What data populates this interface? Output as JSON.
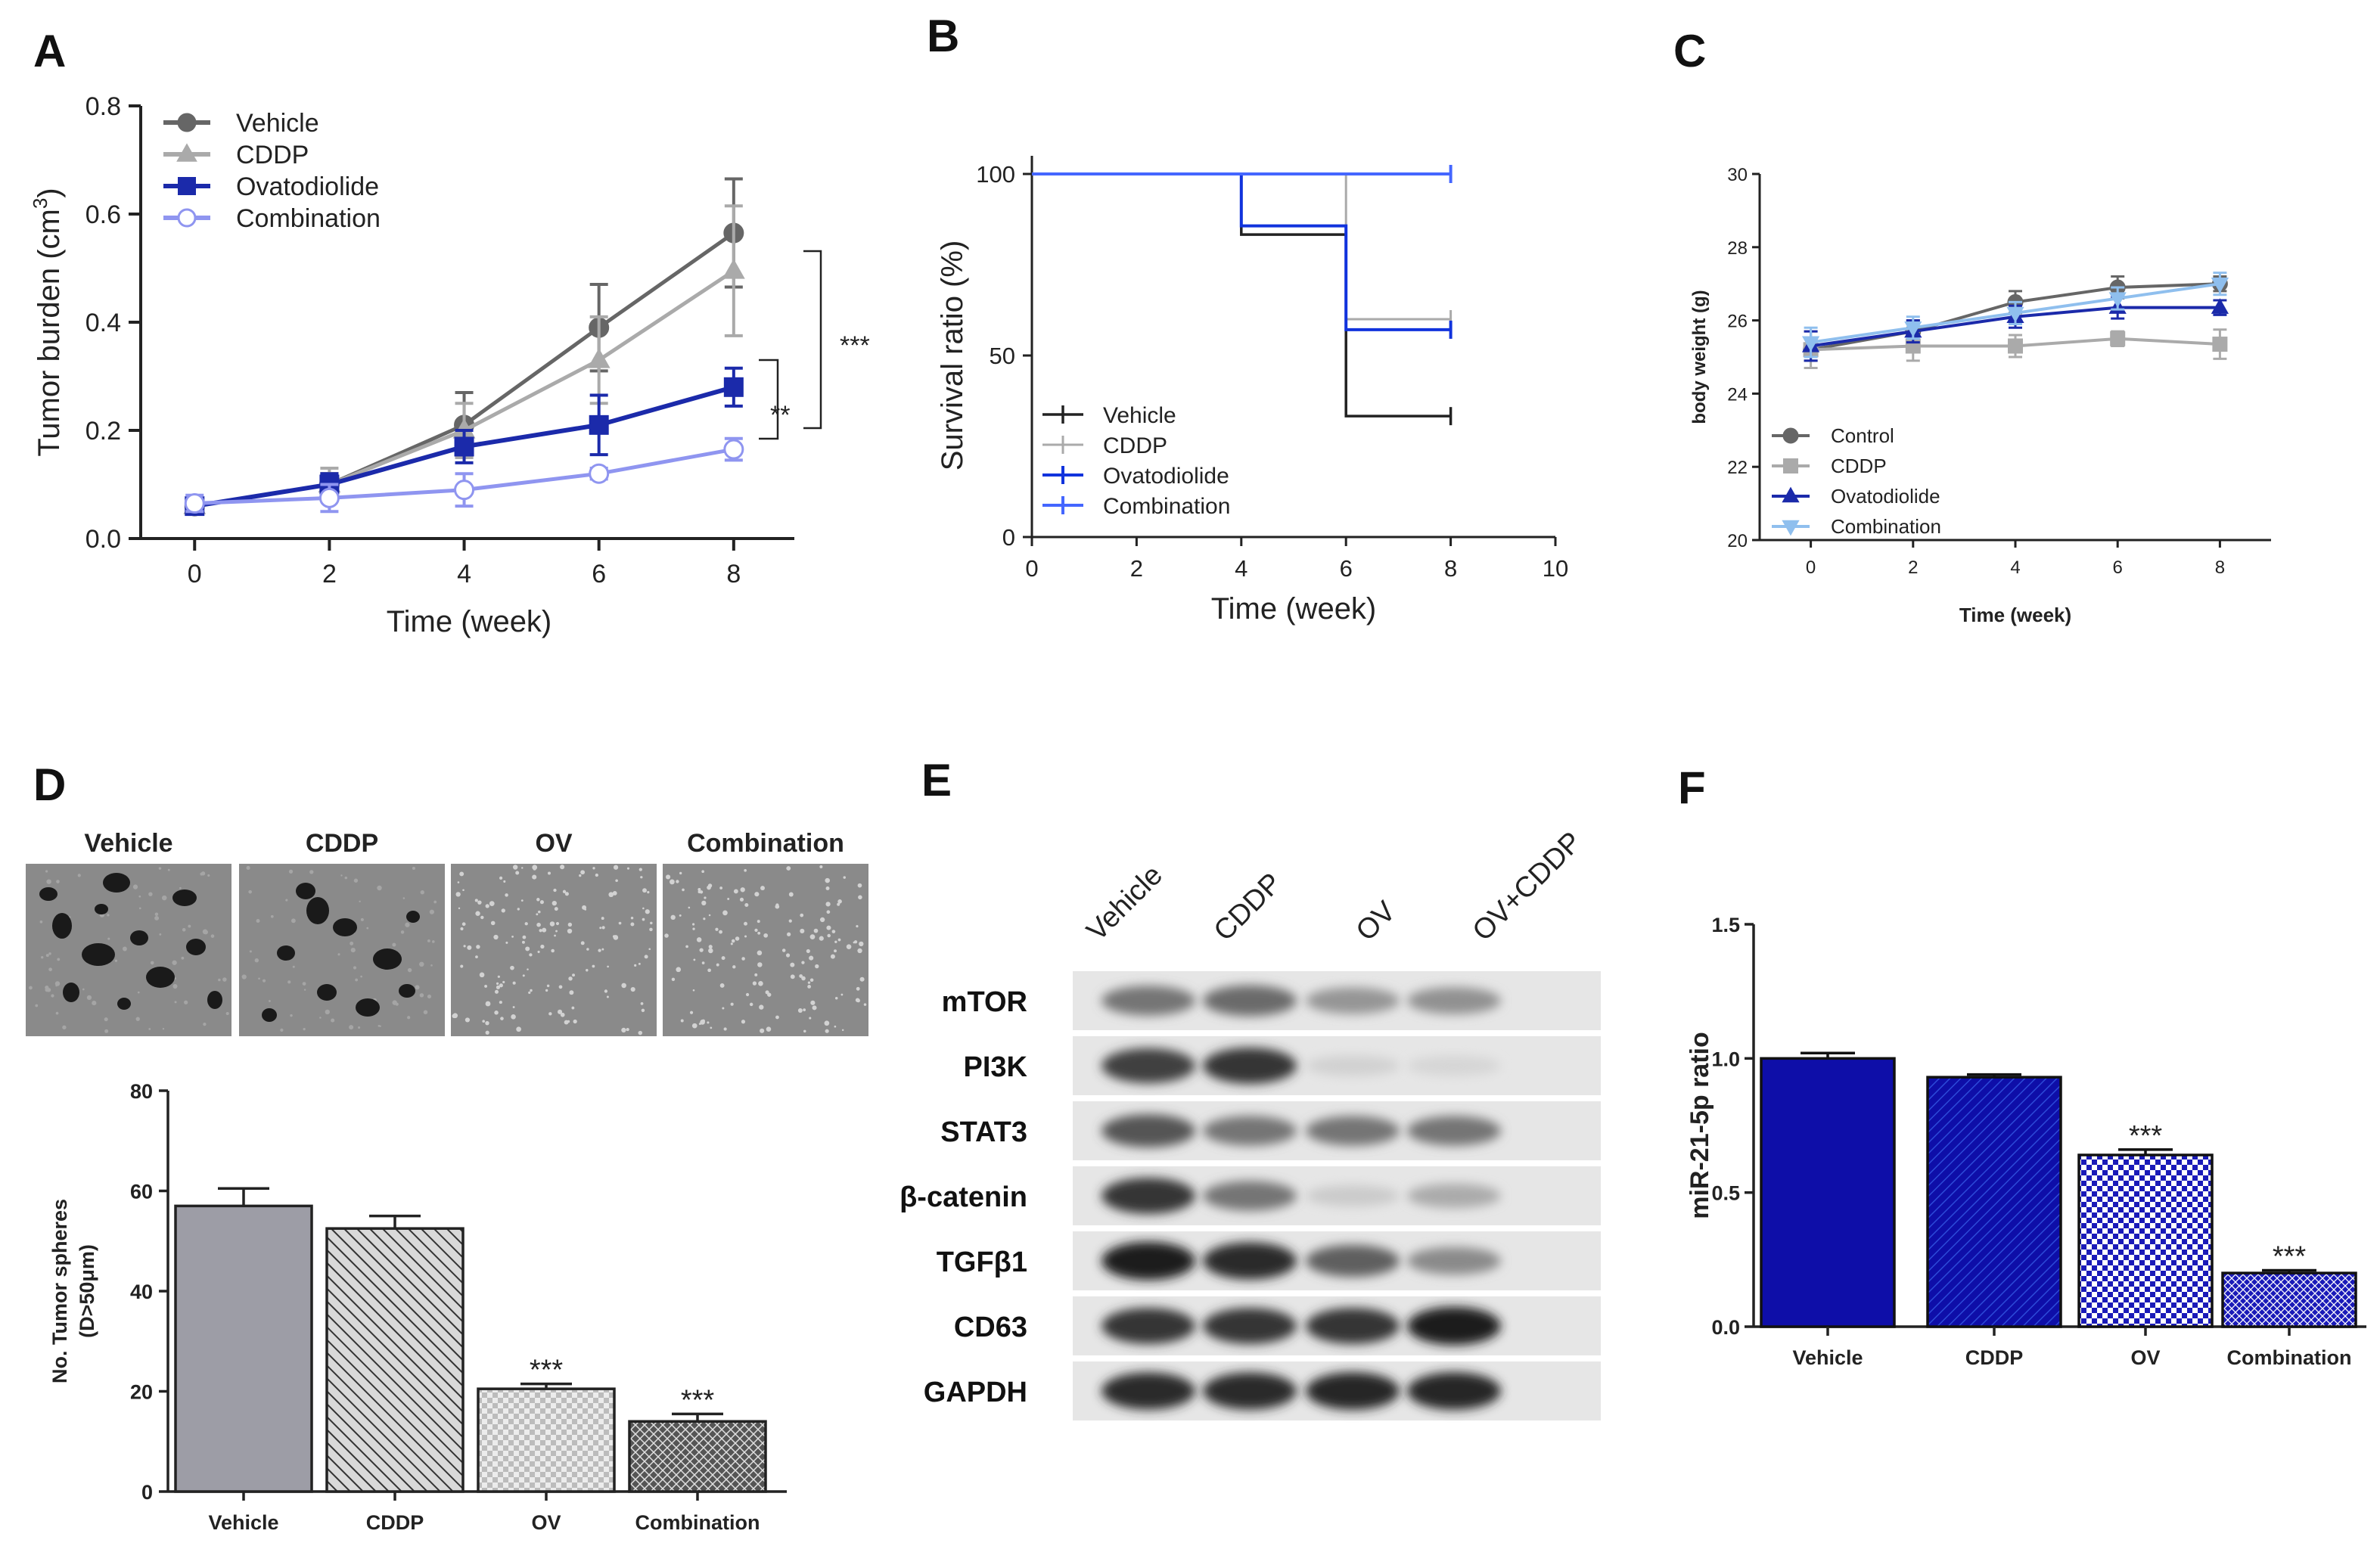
{
  "panels": {
    "a": "A",
    "b": "B",
    "c": "C",
    "d": "D",
    "e": "E",
    "f": "F"
  },
  "colors": {
    "vehicle_a": "#666666",
    "cddp_a": "#aaaaaa",
    "ovato_a": "#1b2aaa",
    "combo_a": "#8f95f0",
    "vehicle_b": "#222222",
    "cddp_b": "#aaaaaa",
    "ovato_b": "#1133dd",
    "combo_b": "#4466ff",
    "control_c": "#666666",
    "cddp_c": "#aaaaaa",
    "ovato_c": "#1b2aaa",
    "combo_c": "#8fbfee",
    "bar_gray": "#9d9da6",
    "bar_navy": "#0e0ea8"
  },
  "chart_data": [
    {
      "id": "A",
      "type": "line",
      "title": "",
      "xlabel": "Time (week)",
      "ylabel": "Tumor burden (cm3)",
      "ylabel_main": "Tumor burden (cm",
      "ylabel_sup": "3",
      "ylabel_close": ")",
      "x": [
        0,
        2,
        4,
        6,
        8
      ],
      "xlim": [
        -0.8,
        8.9
      ],
      "ylim": [
        0,
        0.8
      ],
      "xticks": [
        "0",
        "2",
        "4",
        "6",
        "8"
      ],
      "yticks": [
        "0.0",
        "0.2",
        "0.4",
        "0.6",
        "0.8"
      ],
      "series": [
        {
          "name": "Vehicle",
          "values": [
            0.06,
            0.1,
            0.21,
            0.39,
            0.565
          ],
          "err": [
            0.015,
            0.02,
            0.06,
            0.08,
            0.1
          ]
        },
        {
          "name": "CDDP",
          "values": [
            0.06,
            0.1,
            0.2,
            0.33,
            0.495
          ],
          "err": [
            0.015,
            0.03,
            0.05,
            0.08,
            0.12
          ]
        },
        {
          "name": "Ovatodiolide",
          "values": [
            0.06,
            0.1,
            0.17,
            0.21,
            0.28
          ],
          "err": [
            0.015,
            0.02,
            0.03,
            0.055,
            0.035
          ]
        },
        {
          "name": "Combination",
          "values": [
            0.065,
            0.075,
            0.09,
            0.12,
            0.165
          ],
          "err": [
            0.015,
            0.025,
            0.03,
            0.01,
            0.02
          ]
        }
      ],
      "annotations": [
        "***",
        "**"
      ]
    },
    {
      "id": "B",
      "type": "line",
      "title": "",
      "xlabel": "Time (week)",
      "ylabel": "Survival ratio (%)",
      "xlim": [
        0,
        10
      ],
      "ylim": [
        0,
        100
      ],
      "xticks": [
        "0",
        "2",
        "4",
        "6",
        "8",
        "10"
      ],
      "yticks": [
        "0",
        "50",
        "100"
      ],
      "series": [
        {
          "name": "Vehicle",
          "x": [
            0,
            4,
            4,
            6,
            6,
            8
          ],
          "values": [
            100,
            100,
            83.3,
            83.3,
            33.3,
            33.3
          ]
        },
        {
          "name": "CDDP",
          "x": [
            0,
            6,
            6,
            8
          ],
          "values": [
            100,
            100,
            60,
            60
          ]
        },
        {
          "name": "Ovatodiolide",
          "x": [
            0,
            4,
            4,
            6,
            6,
            8
          ],
          "values": [
            100,
            100,
            85.7,
            85.7,
            57.1,
            57.1
          ]
        },
        {
          "name": "Combination",
          "x": [
            0,
            8
          ],
          "values": [
            100,
            100
          ]
        }
      ]
    },
    {
      "id": "C",
      "type": "line",
      "title": "",
      "xlabel": "Time (week)",
      "ylabel": "body weight (g)",
      "x": [
        0,
        2,
        4,
        6,
        8
      ],
      "xlim": [
        -1,
        9
      ],
      "ylim": [
        20,
        30
      ],
      "xticks": [
        "0",
        "2",
        "4",
        "6",
        "8"
      ],
      "yticks": [
        "20",
        "22",
        "24",
        "26",
        "28",
        "30"
      ],
      "series": [
        {
          "name": "Control",
          "values": [
            25.2,
            25.7,
            26.5,
            26.9,
            27.0
          ],
          "err": [
            0.3,
            0.3,
            0.3,
            0.3,
            0.2
          ]
        },
        {
          "name": "CDDP",
          "values": [
            25.2,
            25.3,
            25.3,
            25.5,
            25.35
          ],
          "err": [
            0.5,
            0.4,
            0.3,
            0.2,
            0.4
          ]
        },
        {
          "name": "Ovatodiolide",
          "values": [
            25.3,
            25.7,
            26.1,
            26.35,
            26.35
          ],
          "err": [
            0.4,
            0.3,
            0.3,
            0.3,
            0.2
          ]
        },
        {
          "name": "Combination",
          "values": [
            25.4,
            25.8,
            26.2,
            26.6,
            27.0
          ],
          "err": [
            0.4,
            0.3,
            0.3,
            0.3,
            0.3
          ]
        }
      ]
    },
    {
      "id": "D",
      "type": "bar",
      "title": "",
      "xlabel": "",
      "ylabel": "No. Tumor spheres (D>50μm)",
      "ylabel1": "No. Tumor spheres",
      "ylabel2": "(D>50μm)",
      "categories": [
        "Vehicle",
        "CDDP",
        "OV",
        "Combination"
      ],
      "values": [
        57,
        52.5,
        20.5,
        14
      ],
      "err": [
        3.5,
        2.5,
        1,
        1.5
      ],
      "ylim": [
        0,
        80
      ],
      "yticks": [
        "0",
        "20",
        "40",
        "60",
        "80"
      ],
      "sig": [
        "",
        "",
        "***",
        "***"
      ],
      "images": [
        "Vehicle",
        "CDDP",
        "OV",
        "Combination"
      ]
    },
    {
      "id": "F",
      "type": "bar",
      "title": "",
      "xlabel": "",
      "ylabel": "miR-21-5p  ratio",
      "categories": [
        "Vehicle",
        "CDDP",
        "OV",
        "Combination"
      ],
      "values": [
        1.0,
        0.93,
        0.64,
        0.2
      ],
      "err": [
        0.02,
        0.01,
        0.02,
        0.01
      ],
      "ylim": [
        0,
        1.5
      ],
      "yticks": [
        "0.0",
        "0.5",
        "1.0",
        "1.5"
      ],
      "sig": [
        "",
        "",
        "***",
        "***"
      ]
    }
  ],
  "western_blot": {
    "lanes": [
      "Vehicle",
      "CDDP",
      "OV",
      "OV+CDDP"
    ],
    "proteins": [
      "mTOR",
      "PI3K",
      "STAT3",
      "β-catenin",
      "TGFβ1",
      "CD63",
      "GAPDH"
    ],
    "intensity": [
      [
        0.55,
        0.6,
        0.4,
        0.42
      ],
      [
        0.8,
        0.85,
        0.12,
        0.1
      ],
      [
        0.7,
        0.55,
        0.55,
        0.55
      ],
      [
        0.85,
        0.55,
        0.15,
        0.3
      ],
      [
        0.95,
        0.9,
        0.65,
        0.45
      ],
      [
        0.85,
        0.85,
        0.85,
        0.95
      ],
      [
        0.9,
        0.9,
        0.92,
        0.92
      ]
    ]
  }
}
